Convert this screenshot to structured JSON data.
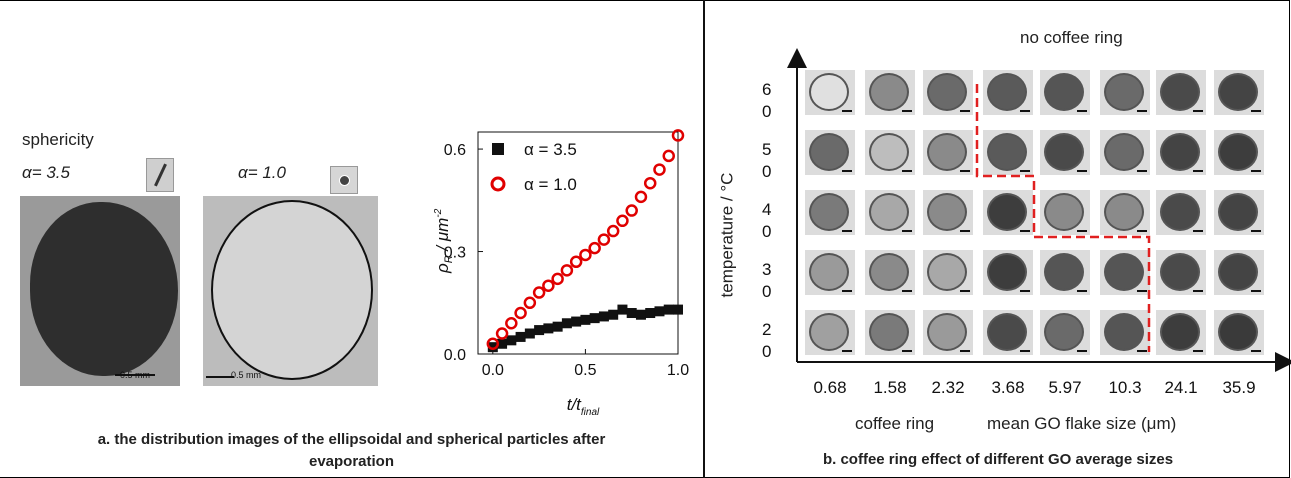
{
  "panel_a": {
    "sphericity_label": "sphericity",
    "alpha1_label": "α= 3.5",
    "alpha2_label": "α= 1.0",
    "scale_bar_1": "0.5 mm",
    "scale_bar_2": "0.5 mm",
    "caption_line1": "a. the distribution images of the ellipsoidal and spherical particles after",
    "caption_line2": "evaporation"
  },
  "panel_b": {
    "top_label": "no coffee ring",
    "bottom_label_left": "coffee ring",
    "bottom_label_right": "mean GO flake size (μm)",
    "y_axis_label": "temperature / °C",
    "y_ticks": [
      {
        "a": "6",
        "b": "0"
      },
      {
        "a": "5",
        "b": "0"
      },
      {
        "a": "4",
        "b": "0"
      },
      {
        "a": "3",
        "b": "0"
      },
      {
        "a": "2",
        "b": "0"
      }
    ],
    "x_ticks": [
      "0.68",
      "1.58",
      "2.32",
      "3.68",
      "5.97",
      "10.3",
      "24.1",
      "35.9"
    ],
    "caption": "b. coffee ring effect of different GO average sizes"
  },
  "chart_data": {
    "type": "scatter",
    "xlabel": "t/t_final",
    "ylabel": "ρ_R / μm^-2",
    "xlim": [
      -0.08,
      1.0
    ],
    "ylim": [
      0.0,
      0.65
    ],
    "x_ticks": [
      "0.0",
      "0.5",
      "1.0"
    ],
    "y_ticks": [
      "0.0",
      "0.3",
      "0.6"
    ],
    "legend_placement": "top-left",
    "series": [
      {
        "name": "α = 3.5",
        "marker": "filled-square",
        "color": "#111111",
        "x": [
          0.0,
          0.05,
          0.1,
          0.15,
          0.2,
          0.25,
          0.3,
          0.35,
          0.4,
          0.45,
          0.5,
          0.55,
          0.6,
          0.65,
          0.7,
          0.75,
          0.8,
          0.85,
          0.9,
          0.95,
          1.0
        ],
        "y": [
          0.02,
          0.03,
          0.04,
          0.05,
          0.06,
          0.07,
          0.075,
          0.08,
          0.09,
          0.095,
          0.1,
          0.105,
          0.11,
          0.115,
          0.13,
          0.12,
          0.115,
          0.12,
          0.125,
          0.13,
          0.13
        ]
      },
      {
        "name": "α = 1.0",
        "marker": "open-circle",
        "color": "#e00000",
        "x": [
          0.0,
          0.05,
          0.1,
          0.15,
          0.2,
          0.25,
          0.3,
          0.35,
          0.4,
          0.45,
          0.5,
          0.55,
          0.6,
          0.65,
          0.7,
          0.75,
          0.8,
          0.85,
          0.9,
          0.95,
          1.0
        ],
        "y": [
          0.03,
          0.06,
          0.09,
          0.12,
          0.15,
          0.18,
          0.2,
          0.22,
          0.245,
          0.27,
          0.29,
          0.31,
          0.335,
          0.36,
          0.39,
          0.42,
          0.46,
          0.5,
          0.54,
          0.58,
          0.64
        ]
      }
    ]
  }
}
